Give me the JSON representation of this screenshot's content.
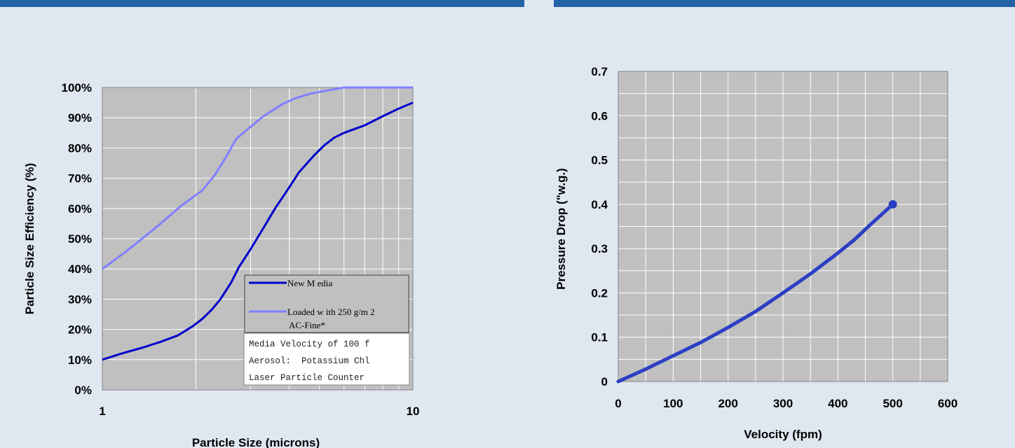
{
  "colors": {
    "background": "#dfe7f1",
    "banner": "#2462a8",
    "plot_area": "#c0c0c0",
    "grid": "#ffffff",
    "new_media": "#0000cc",
    "loaded": "#8080ff",
    "pressure_line": "#2b3fc4"
  },
  "chart_data": [
    {
      "type": "line",
      "title": "",
      "xlabel": "Particle Size (microns)",
      "ylabel": "Particle Size Efficiency (%)",
      "x_scale": "log",
      "xlim": [
        1,
        10
      ],
      "ylim": [
        0,
        1
      ],
      "x_ticks": [
        1,
        10
      ],
      "x_tick_labels": [
        "1",
        "10"
      ],
      "y_ticks": [
        0,
        0.1,
        0.2,
        0.3,
        0.4,
        0.5,
        0.6,
        0.7,
        0.8,
        0.9,
        1
      ],
      "y_tick_labels": [
        "0%",
        "10%",
        "20%",
        "30%",
        "40%",
        "50%",
        "60%",
        "70%",
        "80%",
        "90%",
        "100%"
      ],
      "grid": true,
      "legend_position": "bottom-right",
      "series": [
        {
          "name": "New M edia",
          "color": "#0000cc",
          "x": [
            1,
            1.15,
            1.35,
            1.55,
            1.75,
            1.95,
            2.1,
            2.25,
            2.4,
            2.6,
            2.75,
            3,
            3.3,
            3.6,
            4,
            4.3,
            4.8,
            5.2,
            5.6,
            6,
            7,
            8,
            9,
            10
          ],
          "y": [
            0.1,
            0.12,
            0.14,
            0.16,
            0.18,
            0.21,
            0.235,
            0.265,
            0.3,
            0.355,
            0.405,
            0.465,
            0.535,
            0.6,
            0.67,
            0.72,
            0.775,
            0.81,
            0.835,
            0.85,
            0.875,
            0.905,
            0.93,
            0.95
          ]
        },
        {
          "name": "Loaded w ith 250 g/m 2\nAC-Fine*",
          "color": "#8080ff",
          "x": [
            1,
            1.2,
            1.5,
            1.8,
            2.1,
            2.3,
            2.5,
            2.7,
            3,
            3.3,
            3.8,
            4.2,
            4.7,
            5.3,
            6,
            7,
            8,
            10
          ],
          "y": [
            0.4,
            0.46,
            0.54,
            0.61,
            0.66,
            0.71,
            0.77,
            0.83,
            0.87,
            0.905,
            0.945,
            0.965,
            0.98,
            0.99,
            1,
            1,
            1,
            1
          ]
        }
      ],
      "legend": {
        "entries": [
          "New M edia",
          "Loaded w ith 250 g/m 2",
          "AC-Fine*"
        ]
      },
      "annotations": [
        "Media Velocity of 100 f",
        "Aerosol:  Potassium Chl",
        "Laser Particle Counter"
      ]
    },
    {
      "type": "line",
      "title": "",
      "xlabel": "Velocity (fpm)",
      "ylabel": "Pressure Drop (\"w.g.)",
      "xlim": [
        0,
        600
      ],
      "ylim": [
        0,
        0.7
      ],
      "x_ticks": [
        0,
        100,
        200,
        300,
        400,
        500,
        600
      ],
      "x_tick_labels": [
        "0",
        "100",
        "200",
        "300",
        "400",
        "500",
        "600"
      ],
      "y_ticks": [
        0,
        0.1,
        0.2,
        0.3,
        0.4,
        0.5,
        0.6,
        0.7
      ],
      "y_tick_labels": [
        "0",
        "0.1",
        "0.2",
        "0.3",
        "0.4",
        "0.5",
        "0.6",
        "0.7"
      ],
      "grid": true,
      "series": [
        {
          "color": "#2b3fc4",
          "x": [
            0,
            50,
            100,
            150,
            200,
            250,
            300,
            350,
            400,
            430,
            460,
            500
          ],
          "y": [
            0,
            0.028,
            0.058,
            0.088,
            0.122,
            0.158,
            0.2,
            0.243,
            0.29,
            0.32,
            0.355,
            0.4
          ],
          "end_marker": true
        }
      ]
    }
  ]
}
